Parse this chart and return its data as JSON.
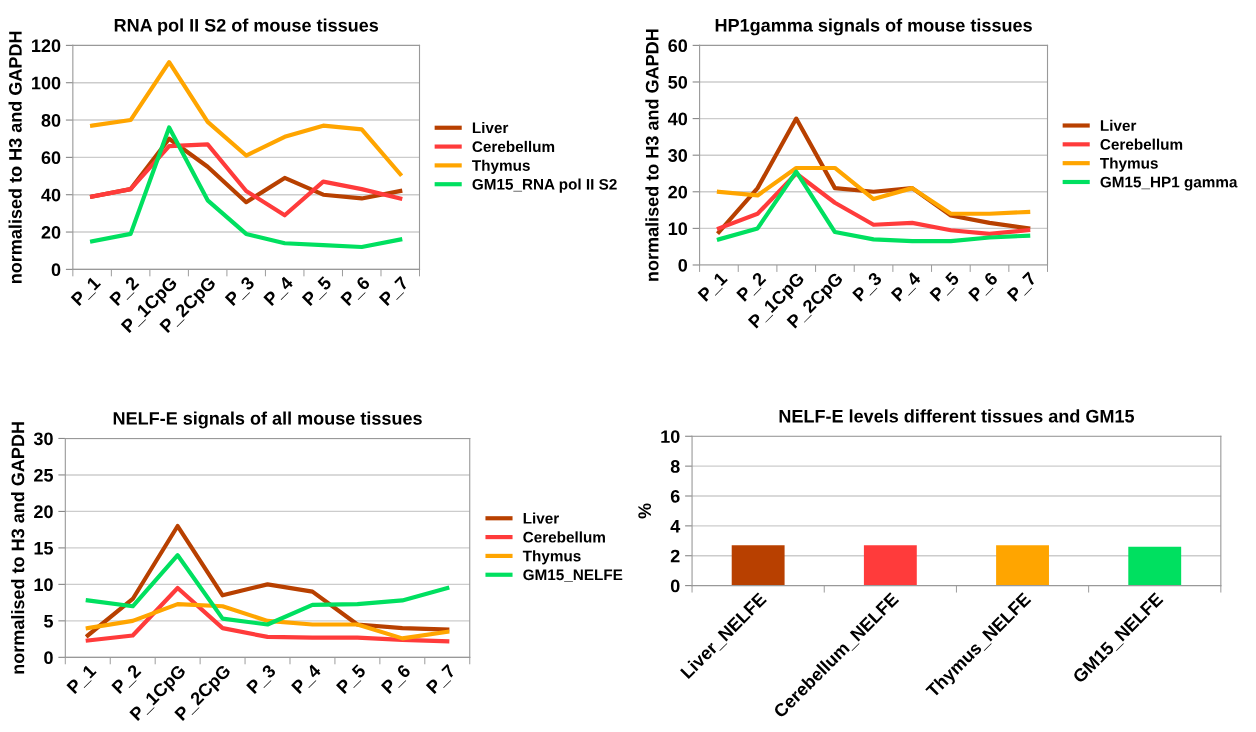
{
  "chart_data": [
    {
      "type": "line",
      "title": "RNA pol II S2 of mouse tissues",
      "ylabel": "normalised to H3 and GAPDH",
      "categories": [
        "P_1",
        "P_2",
        "P_1CpG",
        "P_2CpG",
        "P_3",
        "P_4",
        "P_5",
        "P_6",
        "P_7"
      ],
      "ylim": [
        0,
        120
      ],
      "yticks": [
        0,
        20,
        40,
        60,
        80,
        100,
        120
      ],
      "grid": "y",
      "legend": "right",
      "marker": "none",
      "line_style": "solid",
      "series": [
        {
          "name": "Liver",
          "color": "#b84000",
          "values": [
            39,
            43,
            70,
            55,
            36,
            49,
            40,
            38,
            42
          ]
        },
        {
          "name": "Cerebellum",
          "color": "#ff3b3b",
          "values": [
            39,
            43,
            66,
            67,
            42,
            29,
            47,
            43,
            38
          ]
        },
        {
          "name": "Thymus",
          "color": "#ffa500",
          "values": [
            77,
            80,
            111,
            79,
            61,
            71,
            77,
            75,
            51
          ]
        },
        {
          "name": "GM15_RNA pol II S2",
          "color": "#00e060",
          "values": [
            15,
            19,
            76,
            37,
            19,
            14,
            13,
            12,
            16
          ]
        }
      ]
    },
    {
      "type": "line",
      "title": "HP1gamma signals of mouse tissues",
      "ylabel": "normalised to H3 and GAPDH",
      "categories": [
        "P_1",
        "P_2",
        "P_1CpG",
        "P_2CpG",
        "P_3",
        "P_4",
        "P_5",
        "P_6",
        "P_7"
      ],
      "ylim": [
        0,
        60
      ],
      "yticks": [
        0,
        10,
        20,
        30,
        40,
        50,
        60
      ],
      "grid": "y",
      "legend": "right",
      "marker": "none",
      "line_style": "solid",
      "series": [
        {
          "name": "Liver",
          "color": "#b84000",
          "values": [
            9,
            21,
            40,
            21,
            20,
            21,
            13.5,
            11.5,
            10
          ]
        },
        {
          "name": "Cerebellum",
          "color": "#ff3b3b",
          "values": [
            10,
            14,
            25,
            17,
            11,
            11.5,
            9.5,
            8.5,
            9.5
          ]
        },
        {
          "name": "Thymus",
          "color": "#ffa500",
          "values": [
            20,
            19,
            26.5,
            26.5,
            18,
            21,
            14,
            14,
            14.5
          ]
        },
        {
          "name": "GM15_HP1 gamma",
          "color": "#00e060",
          "values": [
            7,
            10,
            25.5,
            9,
            7,
            6.5,
            6.5,
            7.5,
            8
          ]
        }
      ]
    },
    {
      "type": "line",
      "title": "NELF-E signals of all mouse tissues",
      "ylabel": "normalised to H3 and GAPDH",
      "categories": [
        "P_1",
        "P_2",
        "P_1CpG",
        "P_2CpG",
        "P_3",
        "P_4",
        "P_5",
        "P_6",
        "P_7"
      ],
      "ylim": [
        0,
        30
      ],
      "yticks": [
        0,
        5,
        10,
        15,
        20,
        25,
        30
      ],
      "grid": "y",
      "legend": "right",
      "marker": "none",
      "line_style": "solid",
      "series": [
        {
          "name": "Liver",
          "color": "#b84000",
          "values": [
            3,
            8,
            18,
            8.5,
            10,
            9,
            4.5,
            4,
            3.8
          ]
        },
        {
          "name": "Cerebellum",
          "color": "#ff3b3b",
          "values": [
            2.3,
            3,
            9.5,
            4,
            2.8,
            2.7,
            2.7,
            2.4,
            2.2
          ]
        },
        {
          "name": "Thymus",
          "color": "#ffa500",
          "values": [
            4,
            5,
            7.3,
            7,
            5,
            4.5,
            4.5,
            2.6,
            3.5
          ]
        },
        {
          "name": "GM15_NELFE",
          "color": "#00e060",
          "values": [
            7.8,
            7,
            14,
            5.3,
            4.5,
            7.2,
            7.3,
            7.8,
            9.5
          ]
        }
      ]
    },
    {
      "type": "bar",
      "title": "NELF-E levels different tissues and GM15",
      "ylabel": "%",
      "categories": [
        "Liver_NELFE",
        "Cerebellum_NELFE",
        "Thymus_NELFE",
        "GM15_NELFE"
      ],
      "values": [
        2.7,
        2.7,
        2.7,
        2.6
      ],
      "colors": [
        "#b84000",
        "#ff3b3b",
        "#ffa500",
        "#00e060"
      ],
      "ylim": [
        0,
        10
      ],
      "yticks": [
        0,
        2,
        4,
        6,
        8,
        10
      ],
      "grid": "y"
    }
  ]
}
